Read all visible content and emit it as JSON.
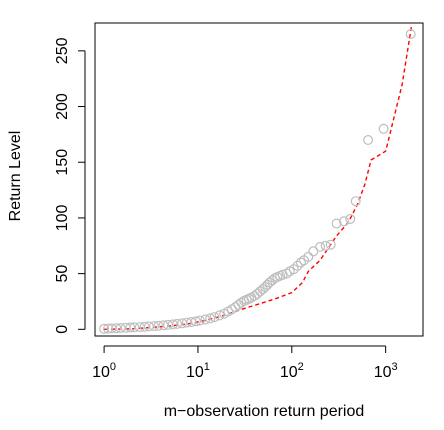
{
  "chart_data": {
    "type": "scatter",
    "title": "",
    "xlabel": "m−observation return period",
    "ylabel": "Return Level",
    "x_scale": "log10",
    "xlim": [
      0.8,
      2500
    ],
    "ylim": [
      -6,
      275
    ],
    "x_ticks": [
      {
        "value": 1,
        "base": "10",
        "exp": "0"
      },
      {
        "value": 10,
        "base": "10",
        "exp": "1"
      },
      {
        "value": 100,
        "base": "10",
        "exp": "2"
      },
      {
        "value": 1000,
        "base": "10",
        "exp": "3"
      }
    ],
    "y_ticks": [
      {
        "value": 0,
        "label": "0"
      },
      {
        "value": 50,
        "label": "50"
      },
      {
        "value": 100,
        "label": "100"
      },
      {
        "value": 150,
        "label": "150"
      },
      {
        "value": 200,
        "label": "200"
      },
      {
        "value": 250,
        "label": "250"
      }
    ],
    "grid": false,
    "legend": "none",
    "colors": {
      "points": "#bebebe",
      "fitted_line": "#ff0000",
      "axes": "#000000"
    },
    "series": [
      {
        "kind": "empirical-points",
        "style": "open-circle",
        "x": [
          1.0,
          1.1,
          1.2,
          1.35,
          1.5,
          1.7,
          1.9,
          2.1,
          2.4,
          2.7,
          3.0,
          3.4,
          3.8,
          4.3,
          4.8,
          5.4,
          6.0,
          6.8,
          7.6,
          8.5,
          9.5,
          10.5,
          12,
          13.5,
          15,
          17,
          19,
          21,
          23,
          25,
          27,
          29,
          31,
          33,
          35,
          37,
          40,
          43,
          46,
          49,
          52,
          55,
          58,
          62,
          66,
          70,
          75,
          80,
          88,
          95,
          105,
          115,
          125,
          135,
          150,
          170,
          200,
          230,
          260,
          300,
          360,
          420,
          480,
          650,
          950,
          1850
        ],
        "y": [
          0.5,
          0.6,
          0.8,
          1.0,
          1.2,
          1.4,
          1.6,
          1.8,
          2.0,
          2.3,
          2.6,
          2.9,
          3.2,
          3.6,
          4.0,
          4.4,
          4.9,
          5.4,
          6.0,
          6.6,
          7.2,
          7.8,
          8.8,
          9.8,
          11,
          12.5,
          14,
          16,
          18,
          20,
          22,
          24,
          25.5,
          26.5,
          27.5,
          28.5,
          30,
          32,
          34,
          36,
          38,
          40,
          42,
          44,
          46,
          47,
          48,
          49,
          50,
          52,
          54,
          57,
          60,
          62,
          65,
          70,
          74,
          75,
          76,
          95,
          97,
          99,
          115,
          170,
          180,
          265
        ]
      },
      {
        "kind": "fitted-line",
        "style": "dashed",
        "x": [
          1.0,
          2,
          3,
          5,
          8,
          12,
          18,
          25,
          35,
          50,
          70,
          100,
          130,
          150,
          200,
          250,
          300,
          400,
          500,
          600,
          700,
          1000,
          1500,
          1900
        ],
        "y": [
          0,
          0.5,
          1.5,
          3,
          5,
          8,
          12,
          16,
          20,
          24,
          28,
          33,
          42,
          52,
          62,
          74,
          84,
          96,
          112,
          130,
          152,
          160,
          220,
          274
        ]
      }
    ]
  }
}
